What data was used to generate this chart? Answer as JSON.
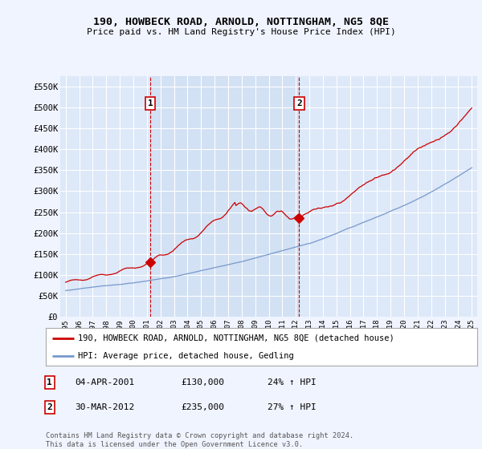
{
  "title": "190, HOWBECK ROAD, ARNOLD, NOTTINGHAM, NG5 8QE",
  "subtitle": "Price paid vs. HM Land Registry's House Price Index (HPI)",
  "background_color": "#f0f4ff",
  "plot_bg_color": "#dde8f8",
  "grid_color": "#ffffff",
  "red_line_label": "190, HOWBECK ROAD, ARNOLD, NOTTINGHAM, NG5 8QE (detached house)",
  "blue_line_label": "HPI: Average price, detached house, Gedling",
  "sale_1_label": "1",
  "sale_1_date": "04-APR-2001",
  "sale_1_price": "£130,000",
  "sale_1_hpi": "24% ↑ HPI",
  "sale_1_year": 2001.25,
  "sale_1_value": 130000,
  "sale_2_label": "2",
  "sale_2_date": "30-MAR-2012",
  "sale_2_price": "£235,000",
  "sale_2_hpi": "27% ↑ HPI",
  "sale_2_year": 2012.25,
  "sale_2_value": 235000,
  "footer": "Contains HM Land Registry data © Crown copyright and database right 2024.\nThis data is licensed under the Open Government Licence v3.0.",
  "ylim": [
    0,
    575000
  ],
  "xlim_start": 1994.6,
  "xlim_end": 2025.4,
  "yticks": [
    0,
    50000,
    100000,
    150000,
    200000,
    250000,
    300000,
    350000,
    400000,
    450000,
    500000,
    550000
  ],
  "ytick_labels": [
    "£0",
    "£50K",
    "£100K",
    "£150K",
    "£200K",
    "£250K",
    "£300K",
    "£350K",
    "£400K",
    "£450K",
    "£500K",
    "£550K"
  ],
  "xticks": [
    1995,
    1996,
    1997,
    1998,
    1999,
    2000,
    2001,
    2002,
    2003,
    2004,
    2005,
    2006,
    2007,
    2008,
    2009,
    2010,
    2011,
    2012,
    2013,
    2014,
    2015,
    2016,
    2017,
    2018,
    2019,
    2020,
    2021,
    2022,
    2023,
    2024,
    2025
  ],
  "red_line_color": "#cc0000",
  "blue_line_color": "#7799cc",
  "dashed_line_color": "#cc0000",
  "shade_color": "#ccddf0",
  "marker_color": "#cc0000"
}
